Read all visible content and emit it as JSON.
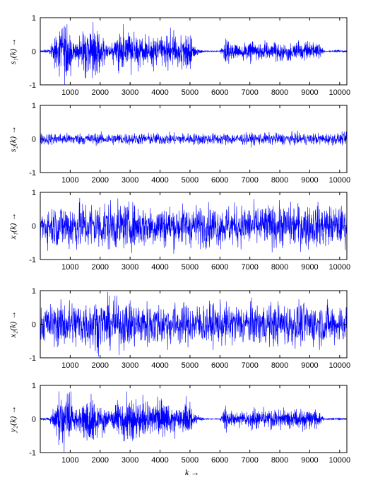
{
  "figure": {
    "xlabel": "k →"
  },
  "chart_data": [
    {
      "type": "line",
      "ylabel": "s₁(k) →",
      "series": [
        {
          "values": []
        }
      ],
      "xlim": [
        0,
        10240
      ],
      "ylim": [
        -1,
        1
      ],
      "xticks": [
        "1000",
        "2000",
        "3000",
        "4000",
        "5000",
        "6000",
        "7000",
        "8000",
        "9000",
        "10000"
      ],
      "yticks": [
        "-1",
        "0",
        "1"
      ],
      "color": "#0000ff",
      "envelope": {
        "x": [
          0,
          300,
          600,
          800,
          1000,
          1100,
          1300,
          1500,
          1700,
          1900,
          2100,
          2300,
          2600,
          3000,
          3500,
          4000,
          4500,
          4800,
          5000,
          5200,
          5500,
          6000,
          6200,
          6350,
          6500,
          7000,
          7500,
          8000,
          8500,
          9000,
          9300,
          9500,
          10000,
          10240
        ],
        "amp": [
          0.03,
          0.06,
          0.75,
          0.9,
          0.9,
          0.3,
          0.45,
          0.85,
          0.9,
          0.9,
          0.55,
          0.2,
          0.65,
          0.7,
          0.55,
          0.6,
          0.5,
          0.65,
          0.55,
          0.12,
          0.02,
          0.02,
          0.45,
          0.38,
          0.25,
          0.3,
          0.3,
          0.28,
          0.3,
          0.35,
          0.25,
          0.02,
          0.05,
          0.02
        ]
      }
    },
    {
      "type": "line",
      "ylabel": "s₂(k) →",
      "series": [
        {
          "values": []
        }
      ],
      "xlim": [
        0,
        10240
      ],
      "ylim": [
        -1,
        1
      ],
      "xticks": [
        "1000",
        "2000",
        "3000",
        "4000",
        "5000",
        "6000",
        "7000",
        "8000",
        "9000",
        "10000"
      ],
      "yticks": [
        "-1",
        "0",
        "1"
      ],
      "color": "#0000ff",
      "envelope": {
        "x": [
          0,
          10240
        ],
        "amp": [
          0.2,
          0.2
        ]
      }
    },
    {
      "type": "line",
      "ylabel": "x₁(k) →",
      "series": [
        {
          "values": []
        }
      ],
      "xlim": [
        0,
        10240
      ],
      "ylim": [
        -1,
        1
      ],
      "xticks": [
        "1000",
        "2000",
        "3000",
        "4000",
        "5000",
        "6000",
        "7000",
        "8000",
        "9000",
        "10000"
      ],
      "yticks": [
        "-1",
        "0",
        "1"
      ],
      "color": "#0000ff",
      "envelope": {
        "x": [
          0,
          1000,
          2000,
          3000,
          5000,
          7000,
          9000,
          10240
        ],
        "amp": [
          0.6,
          0.85,
          0.85,
          0.75,
          0.7,
          0.7,
          0.75,
          0.65
        ]
      }
    },
    {
      "type": "line",
      "ylabel": "x₂(k) →",
      "series": [
        {
          "values": []
        }
      ],
      "xlim": [
        0,
        10240
      ],
      "ylim": [
        -1,
        1
      ],
      "xticks": [
        "1000",
        "2000",
        "3000",
        "4000",
        "5000",
        "6000",
        "7000",
        "8000",
        "9000",
        "10000"
      ],
      "yticks": [
        "-1",
        "0",
        "1"
      ],
      "color": "#0000ff",
      "envelope": {
        "x": [
          0,
          1000,
          2000,
          3000,
          5000,
          7000,
          9000,
          10240
        ],
        "amp": [
          0.6,
          0.85,
          0.85,
          0.8,
          0.7,
          0.7,
          0.75,
          0.65
        ]
      }
    },
    {
      "type": "line",
      "ylabel": "y₂(k) →",
      "series": [
        {
          "values": []
        }
      ],
      "xlim": [
        0,
        10240
      ],
      "ylim": [
        -1,
        1
      ],
      "xticks": [
        "1000",
        "2000",
        "3000",
        "4000",
        "5000",
        "6000",
        "7000",
        "8000",
        "9000",
        "10000"
      ],
      "yticks": [
        "-1",
        "0",
        "1"
      ],
      "color": "#0000ff",
      "envelope": {
        "x": [
          0,
          300,
          600,
          800,
          1000,
          1100,
          1300,
          1500,
          1700,
          1900,
          2100,
          2300,
          2600,
          3000,
          3500,
          4000,
          4500,
          4800,
          5000,
          5200,
          5500,
          6000,
          6200,
          6350,
          6500,
          7000,
          7500,
          8000,
          8500,
          9000,
          9300,
          9500,
          10000,
          10240
        ],
        "amp": [
          0.03,
          0.06,
          0.75,
          0.9,
          0.95,
          0.3,
          0.45,
          0.85,
          0.9,
          0.9,
          0.55,
          0.2,
          0.65,
          0.7,
          0.55,
          0.6,
          0.5,
          0.65,
          0.55,
          0.12,
          0.02,
          0.02,
          0.45,
          0.38,
          0.25,
          0.3,
          0.3,
          0.35,
          0.3,
          0.35,
          0.25,
          0.02,
          0.05,
          0.02
        ]
      }
    }
  ]
}
